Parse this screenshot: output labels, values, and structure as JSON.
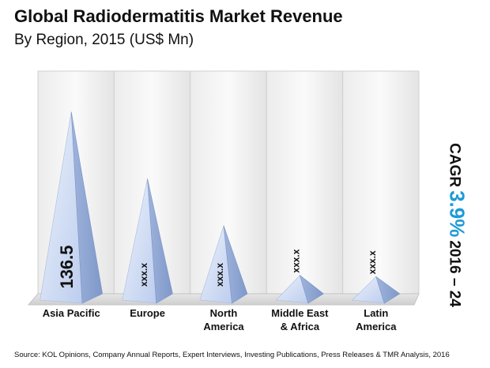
{
  "header": {
    "title": "Global Radiodermatitis Market Revenue",
    "subtitle": "By Region, 2015 (US$ Mn)"
  },
  "chart_data": {
    "type": "bar",
    "title": "Global Radiodermatitis Market Revenue",
    "subtitle": "By Region, 2015 (US$ Mn)",
    "categories": [
      "Asia Pacific",
      "Europe",
      "North America",
      "Middle East & Africa",
      "Latin America"
    ],
    "category_lines": [
      [
        "Asia Pacific"
      ],
      [
        "Europe"
      ],
      [
        "North",
        "America"
      ],
      [
        "Middle East",
        "& Africa"
      ],
      [
        "Latin",
        "America"
      ]
    ],
    "values": [
      136.5,
      88,
      54,
      18,
      17
    ],
    "value_labels": [
      "136.5",
      "xxx.x",
      "xxx.x",
      "xxx.x",
      "xxx.x"
    ],
    "ylim": [
      0,
      150
    ],
    "grid": false,
    "legend": "none"
  },
  "cagr": {
    "prefix": "CAGR",
    "value": "3.9%",
    "period": "2016 – 24"
  },
  "source": "Source: KOL Opinions, Company Annual Reports, Expert Interviews, Investing Publications, Press Releases & TMR Analysis, 2016",
  "colors": {
    "pyramid_light": "#d9e4f7",
    "pyramid_mid": "#b4c8ec",
    "pyramid_dark": "#8ea7d6",
    "cagr_accent": "#1e9bd7"
  }
}
